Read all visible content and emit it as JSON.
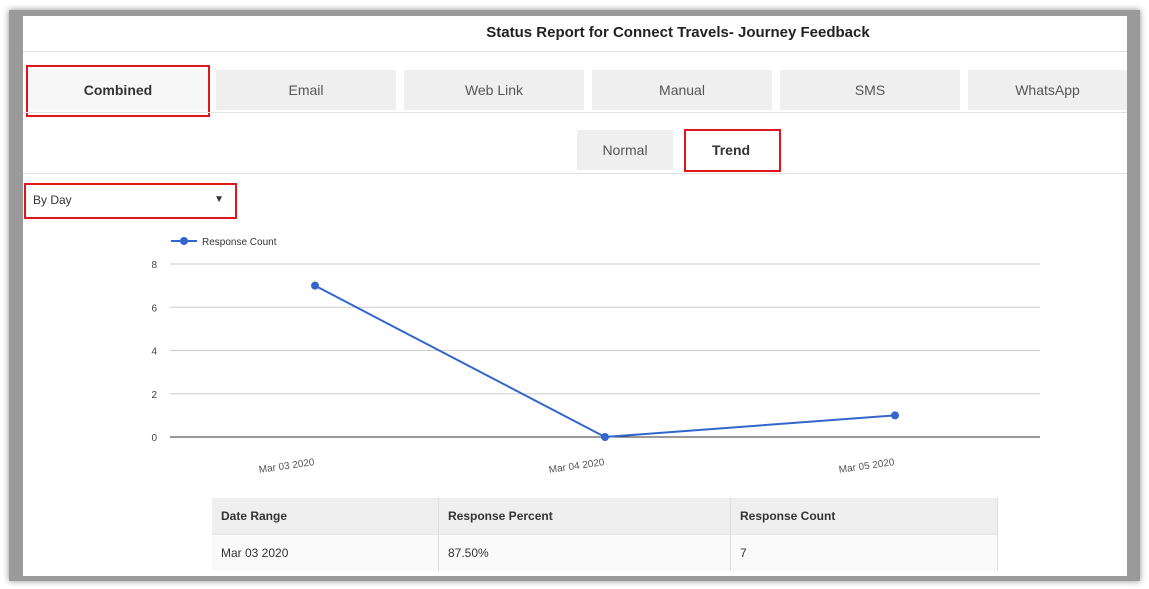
{
  "report": {
    "title": "Status Report for Connect Travels- Journey Feedback"
  },
  "tabs": [
    {
      "label": "Combined",
      "active": true
    },
    {
      "label": "Email"
    },
    {
      "label": "Web Link"
    },
    {
      "label": "Manual"
    },
    {
      "label": "SMS"
    },
    {
      "label": "WhatsApp"
    }
  ],
  "view_tabs": [
    {
      "label": "Normal"
    },
    {
      "label": "Trend",
      "active": true
    }
  ],
  "period_select": {
    "value": "By Day"
  },
  "colors": {
    "series": "#3366cc",
    "highlight": "#e0161e"
  },
  "chart_data": {
    "type": "line",
    "categories": [
      "Mar 03 2020",
      "Mar 04 2020",
      "Mar 05 2020"
    ],
    "series": [
      {
        "name": "Response Count",
        "values": [
          7,
          0,
          1
        ]
      }
    ],
    "ylim": [
      0,
      8
    ],
    "yticks": [
      "0",
      "2",
      "4",
      "6",
      "8"
    ],
    "legend": "top-left",
    "grid": true
  },
  "table": {
    "headers": [
      "Date Range",
      "Response Percent",
      "Response Count"
    ],
    "rows": [
      [
        "Mar 03 2020",
        "87.50%",
        "7"
      ]
    ]
  }
}
